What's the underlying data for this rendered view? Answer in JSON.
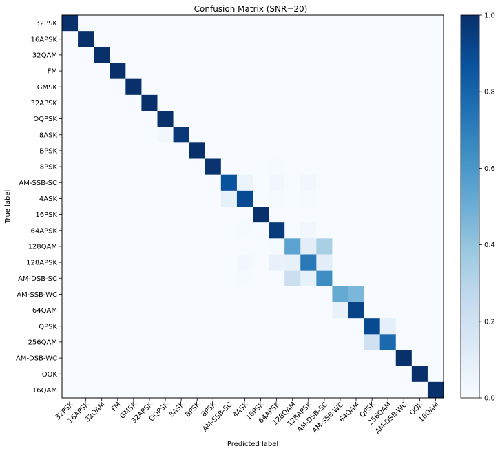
{
  "chart_data": {
    "type": "heatmap",
    "title": "Confusion Matrix (SNR=20)",
    "xlabel": "Predicted label",
    "ylabel": "True label",
    "colormap": "Blues",
    "color_low": "#f7fbff",
    "color_high": "#08306b",
    "colorbar_range": [
      0.0,
      1.0
    ],
    "colorbar_ticks": [
      "0.0",
      "0.2",
      "0.4",
      "0.6",
      "0.8",
      "1.0"
    ],
    "labels": [
      "32PSK",
      "16APSK",
      "32QAM",
      "FM",
      "GMSK",
      "32APSK",
      "OQPSK",
      "8ASK",
      "BPSK",
      "8PSK",
      "AM-SSB-SC",
      "4ASK",
      "16PSK",
      "64APSK",
      "128QAM",
      "128APSK",
      "AM-DSB-SC",
      "AM-SSB-WC",
      "64QAM",
      "QPSK",
      "256QAM",
      "AM-DSB-WC",
      "OOK",
      "16QAM"
    ],
    "matrix": [
      [
        1.0,
        0,
        0,
        0,
        0,
        0,
        0,
        0,
        0,
        0,
        0,
        0,
        0,
        0,
        0,
        0,
        0,
        0,
        0,
        0,
        0,
        0,
        0,
        0
      ],
      [
        0,
        1.0,
        0,
        0,
        0,
        0,
        0,
        0,
        0,
        0,
        0,
        0,
        0,
        0,
        0,
        0,
        0,
        0,
        0,
        0,
        0,
        0,
        0,
        0
      ],
      [
        0,
        0,
        1.0,
        0,
        0,
        0,
        0,
        0,
        0,
        0,
        0,
        0,
        0,
        0,
        0,
        0,
        0,
        0,
        0,
        0,
        0,
        0,
        0,
        0
      ],
      [
        0,
        0,
        0,
        1.0,
        0,
        0,
        0,
        0,
        0,
        0,
        0,
        0,
        0,
        0,
        0,
        0,
        0,
        0,
        0,
        0,
        0,
        0,
        0,
        0
      ],
      [
        0,
        0,
        0,
        0,
        1.0,
        0,
        0,
        0,
        0,
        0,
        0,
        0,
        0,
        0,
        0,
        0,
        0,
        0,
        0,
        0,
        0,
        0,
        0,
        0
      ],
      [
        0,
        0,
        0,
        0,
        0,
        1.0,
        0,
        0,
        0,
        0,
        0,
        0,
        0,
        0,
        0,
        0,
        0,
        0,
        0,
        0,
        0,
        0,
        0,
        0
      ],
      [
        0,
        0,
        0,
        0,
        0,
        0,
        1.0,
        0,
        0,
        0,
        0,
        0,
        0,
        0,
        0,
        0,
        0,
        0,
        0,
        0,
        0,
        0,
        0,
        0
      ],
      [
        0,
        0,
        0,
        0,
        0,
        0,
        0.03,
        0.97,
        0,
        0,
        0,
        0,
        0,
        0,
        0,
        0,
        0,
        0,
        0,
        0,
        0,
        0,
        0,
        0
      ],
      [
        0,
        0,
        0,
        0,
        0,
        0,
        0,
        0,
        1.0,
        0,
        0,
        0,
        0,
        0,
        0,
        0,
        0,
        0,
        0,
        0,
        0,
        0,
        0,
        0
      ],
      [
        0,
        0,
        0,
        0,
        0,
        0,
        0,
        0,
        0,
        0.99,
        0,
        0,
        0,
        0.01,
        0,
        0,
        0,
        0,
        0,
        0,
        0,
        0,
        0,
        0
      ],
      [
        0,
        0,
        0,
        0,
        0,
        0,
        0,
        0,
        0,
        0,
        0.87,
        0.06,
        0,
        0.03,
        0,
        0.03,
        0,
        0,
        0,
        0,
        0,
        0,
        0,
        0
      ],
      [
        0,
        0,
        0,
        0,
        0,
        0,
        0,
        0,
        0,
        0,
        0.08,
        0.9,
        0,
        0.01,
        0,
        0.01,
        0,
        0,
        0,
        0,
        0,
        0,
        0,
        0
      ],
      [
        0,
        0,
        0,
        0,
        0,
        0,
        0,
        0,
        0,
        0,
        0,
        0,
        1.0,
        0,
        0,
        0,
        0,
        0,
        0,
        0,
        0,
        0,
        0,
        0
      ],
      [
        0,
        0,
        0,
        0,
        0,
        0,
        0,
        0,
        0,
        0,
        0,
        0.01,
        0,
        0.96,
        0,
        0.03,
        0,
        0,
        0,
        0,
        0,
        0,
        0,
        0
      ],
      [
        0,
        0,
        0,
        0,
        0,
        0,
        0,
        0,
        0,
        0,
        0,
        0,
        0,
        0.01,
        0.55,
        0.1,
        0.34,
        0,
        0,
        0,
        0,
        0,
        0,
        0,
        0
      ],
      [
        0,
        0,
        0,
        0,
        0,
        0,
        0,
        0,
        0,
        0,
        0,
        0.02,
        0,
        0.07,
        0.08,
        0.72,
        0.1,
        0,
        0,
        0,
        0,
        0,
        0,
        0,
        0
      ],
      [
        0,
        0,
        0,
        0,
        0,
        0,
        0,
        0,
        0,
        0,
        0,
        0.01,
        0,
        0,
        0.22,
        0.08,
        0.64,
        0,
        0,
        0,
        0,
        0,
        0,
        0,
        0
      ],
      [
        0,
        0,
        0,
        0,
        0,
        0,
        0,
        0,
        0,
        0,
        0,
        0,
        0,
        0,
        0,
        0,
        0,
        0.52,
        0.46,
        0,
        0,
        0,
        0,
        0,
        0
      ],
      [
        0,
        0,
        0,
        0,
        0,
        0,
        0,
        0,
        0,
        0,
        0,
        0,
        0,
        0,
        0,
        0,
        0,
        0.07,
        0.93,
        0,
        0,
        0,
        0,
        0,
        0
      ],
      [
        0,
        0,
        0,
        0,
        0,
        0,
        0,
        0,
        0,
        0,
        0,
        0,
        0,
        0,
        0,
        0,
        0,
        0,
        0,
        0.9,
        0.09,
        0,
        0,
        0,
        0
      ],
      [
        0,
        0,
        0,
        0,
        0,
        0,
        0,
        0,
        0,
        0,
        0,
        0,
        0,
        0,
        0,
        0,
        0,
        0,
        0,
        0.2,
        0.78,
        0,
        0,
        0,
        0
      ],
      [
        0,
        0,
        0,
        0,
        0,
        0,
        0,
        0,
        0,
        0,
        0,
        0,
        0,
        0,
        0,
        0,
        0,
        0,
        0,
        0,
        0,
        1.0,
        0,
        0,
        0
      ],
      [
        0,
        0,
        0,
        0,
        0,
        0,
        0,
        0,
        0,
        0,
        0,
        0,
        0,
        0,
        0,
        0,
        0,
        0,
        0,
        0,
        0,
        0,
        1.0,
        0,
        0
      ],
      [
        0,
        0,
        0,
        0,
        0,
        0,
        0,
        0,
        0,
        0,
        0,
        0,
        0,
        0,
        0,
        0,
        0,
        0,
        0,
        0,
        0,
        0,
        0,
        1.0,
        0
      ]
    ]
  }
}
